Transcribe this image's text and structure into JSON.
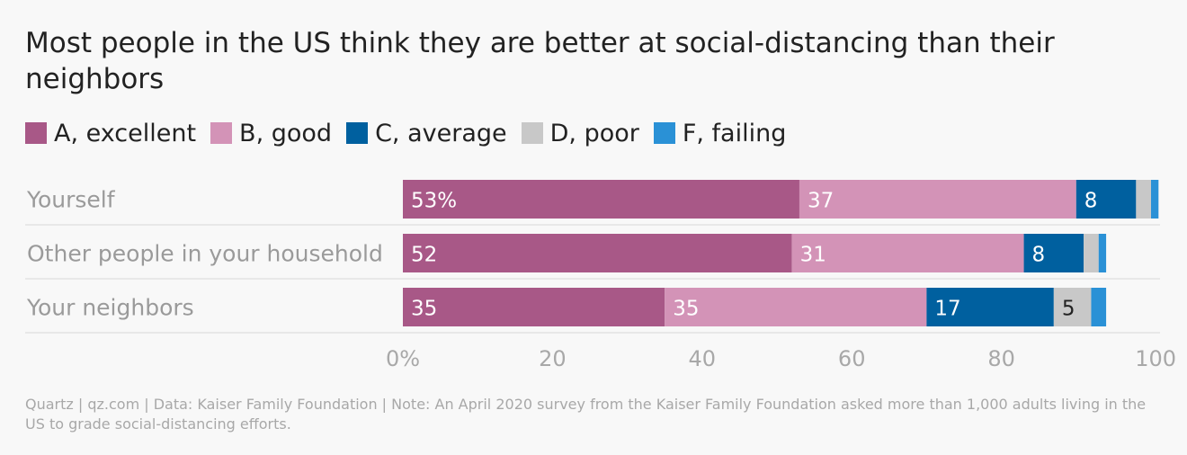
{
  "title": "Most people in the US think they are better at social-distancing than their neighbors",
  "footer": "Quartz | qz.com | Data: Kaiser Family Foundation | Note: An April 2020 survey from the Kaiser Family Foundation asked more than 1,000 adults living in the US to grade social-distancing efforts.",
  "chart_data": {
    "type": "bar",
    "orientation": "horizontal",
    "stacked": true,
    "categories": [
      "Yourself",
      "Other people in your household",
      "Your neighbors"
    ],
    "series": [
      {
        "name": "A, excellent",
        "color": "#a85887",
        "values": [
          53,
          52,
          35
        ],
        "labels": [
          "53%",
          "52",
          "35"
        ]
      },
      {
        "name": "B, good",
        "color": "#d393b7",
        "values": [
          37,
          31,
          35
        ],
        "labels": [
          "37",
          "31",
          "35"
        ]
      },
      {
        "name": "C, average",
        "color": "#00609f",
        "values": [
          8,
          8,
          17
        ],
        "labels": [
          "8",
          "8",
          "17"
        ]
      },
      {
        "name": "D, poor",
        "color": "#c8c8c8",
        "values": [
          2,
          2,
          5
        ],
        "labels": [
          "",
          "",
          "5"
        ]
      },
      {
        "name": "F, failing",
        "color": "#2a91d6",
        "values": [
          1,
          1,
          2
        ],
        "labels": [
          "",
          "",
          ""
        ]
      }
    ],
    "xticks": [
      0,
      20,
      40,
      60,
      80,
      100
    ],
    "xtick_labels": [
      "0%",
      "20",
      "40",
      "60",
      "80",
      "100"
    ],
    "xlim": [
      0,
      100
    ],
    "legend_position": "top-left",
    "grid": true
  }
}
